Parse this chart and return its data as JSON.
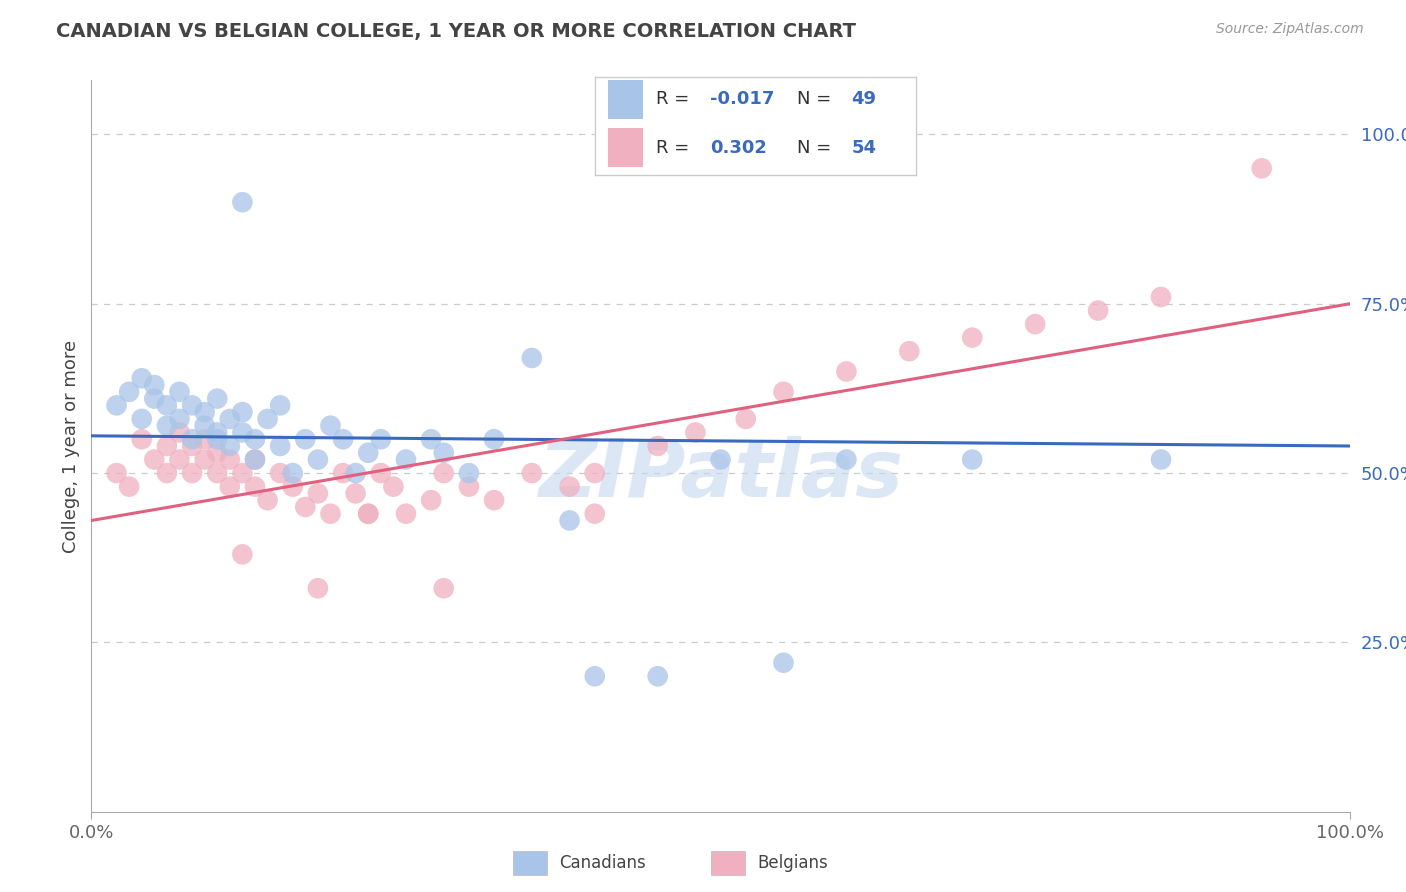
{
  "title": "CANADIAN VS BELGIAN COLLEGE, 1 YEAR OR MORE CORRELATION CHART",
  "source": "Source: ZipAtlas.com",
  "ylabel": "College, 1 year or more",
  "legend_label1": "Canadians",
  "legend_label2": "Belgians",
  "r1": "-0.017",
  "n1": "49",
  "r2": "0.302",
  "n2": "54",
  "xlim": [
    0.0,
    1.0
  ],
  "ylim": [
    0.0,
    1.08
  ],
  "yticks": [
    0.25,
    0.5,
    0.75,
    1.0
  ],
  "ytick_labels": [
    "25.0%",
    "50.0%",
    "75.0%",
    "100.0%"
  ],
  "blue_dot": "#a8c4e8",
  "pink_dot": "#f0b0c0",
  "blue_line": "#3a6abf",
  "pink_line": "#e06080",
  "text_dark": "#444444",
  "text_blue": "#3a6abf",
  "grid_color": "#cccccc",
  "watermark_color": "#c5d8ef",
  "canadians_x": [
    0.02,
    0.03,
    0.04,
    0.04,
    0.05,
    0.05,
    0.06,
    0.06,
    0.07,
    0.07,
    0.08,
    0.08,
    0.09,
    0.09,
    0.1,
    0.1,
    0.1,
    0.11,
    0.11,
    0.12,
    0.12,
    0.13,
    0.13,
    0.14,
    0.15,
    0.15,
    0.16,
    0.17,
    0.18,
    0.19,
    0.2,
    0.21,
    0.22,
    0.23,
    0.25,
    0.27,
    0.28,
    0.3,
    0.32,
    0.35,
    0.38,
    0.4,
    0.45,
    0.5,
    0.55,
    0.6,
    0.7,
    0.85,
    0.12
  ],
  "canadians_y": [
    0.6,
    0.62,
    0.58,
    0.64,
    0.61,
    0.63,
    0.57,
    0.6,
    0.58,
    0.62,
    0.55,
    0.6,
    0.57,
    0.59,
    0.56,
    0.61,
    0.55,
    0.58,
    0.54,
    0.56,
    0.59,
    0.52,
    0.55,
    0.58,
    0.54,
    0.6,
    0.5,
    0.55,
    0.52,
    0.57,
    0.55,
    0.5,
    0.53,
    0.55,
    0.52,
    0.55,
    0.53,
    0.5,
    0.55,
    0.67,
    0.43,
    0.2,
    0.2,
    0.52,
    0.22,
    0.52,
    0.52,
    0.52,
    0.9
  ],
  "belgians_x": [
    0.02,
    0.03,
    0.04,
    0.05,
    0.06,
    0.06,
    0.07,
    0.07,
    0.08,
    0.08,
    0.09,
    0.09,
    0.1,
    0.1,
    0.11,
    0.11,
    0.12,
    0.13,
    0.13,
    0.14,
    0.15,
    0.16,
    0.17,
    0.18,
    0.19,
    0.2,
    0.21,
    0.22,
    0.23,
    0.24,
    0.25,
    0.27,
    0.28,
    0.3,
    0.32,
    0.35,
    0.38,
    0.4,
    0.4,
    0.45,
    0.48,
    0.52,
    0.55,
    0.6,
    0.65,
    0.7,
    0.75,
    0.8,
    0.85,
    0.93,
    0.12,
    0.18,
    0.22,
    0.28
  ],
  "belgians_y": [
    0.5,
    0.48,
    0.55,
    0.52,
    0.5,
    0.54,
    0.52,
    0.56,
    0.5,
    0.54,
    0.52,
    0.55,
    0.5,
    0.53,
    0.48,
    0.52,
    0.5,
    0.48,
    0.52,
    0.46,
    0.5,
    0.48,
    0.45,
    0.47,
    0.44,
    0.5,
    0.47,
    0.44,
    0.5,
    0.48,
    0.44,
    0.46,
    0.5,
    0.48,
    0.46,
    0.5,
    0.48,
    0.44,
    0.5,
    0.54,
    0.56,
    0.58,
    0.62,
    0.65,
    0.68,
    0.7,
    0.72,
    0.74,
    0.76,
    0.95,
    0.38,
    0.33,
    0.44,
    0.33
  ],
  "blue_line_x": [
    0.0,
    1.0
  ],
  "blue_line_y": [
    0.555,
    0.54
  ],
  "pink_line_x": [
    0.0,
    1.0
  ],
  "pink_line_y": [
    0.43,
    0.75
  ]
}
